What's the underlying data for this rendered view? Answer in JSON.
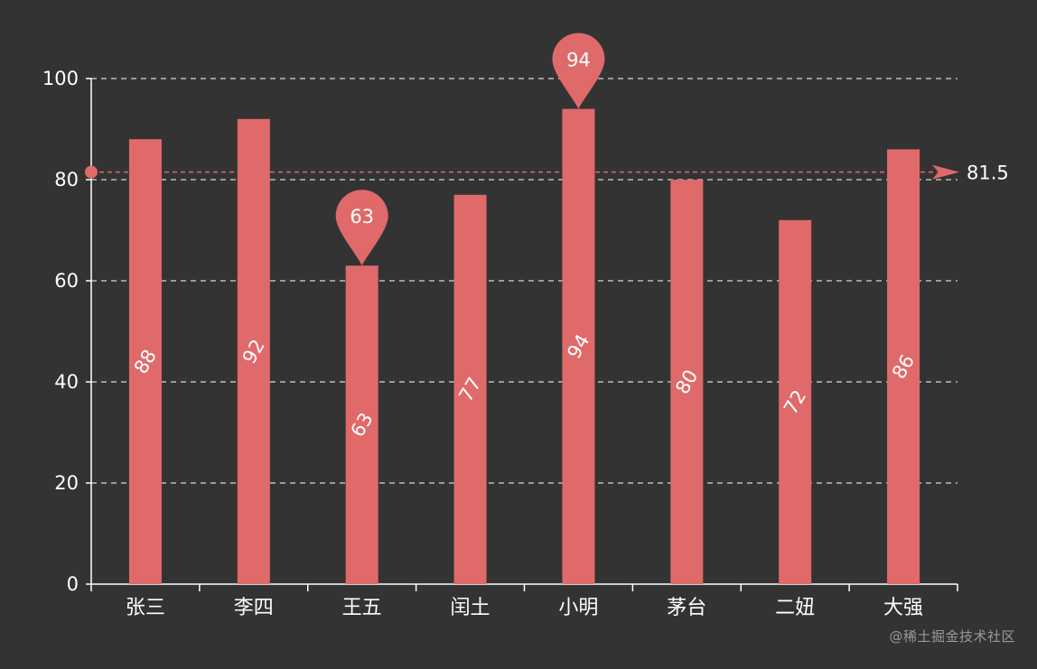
{
  "chart_data": {
    "type": "bar",
    "categories": [
      "张三",
      "李四",
      "王五",
      "闰土",
      "小明",
      "茅台",
      "二妞",
      "大强"
    ],
    "values": [
      88,
      92,
      63,
      77,
      94,
      80,
      72,
      86
    ],
    "ylim": [
      0,
      100
    ],
    "y_ticks": [
      0,
      20,
      40,
      60,
      80,
      100
    ],
    "grid": true,
    "bar_color": "#e06a6a",
    "axis_color": "#ffffff",
    "label_color": "#ffffff",
    "grid_color": "#d8d8d8",
    "mark_points": [
      {
        "category": "小明",
        "value": 94
      },
      {
        "category": "王五",
        "value": 63
      }
    ],
    "mark_line": {
      "value": 81.5,
      "label": "81.5"
    }
  },
  "watermark": "@稀土掘金技术社区"
}
